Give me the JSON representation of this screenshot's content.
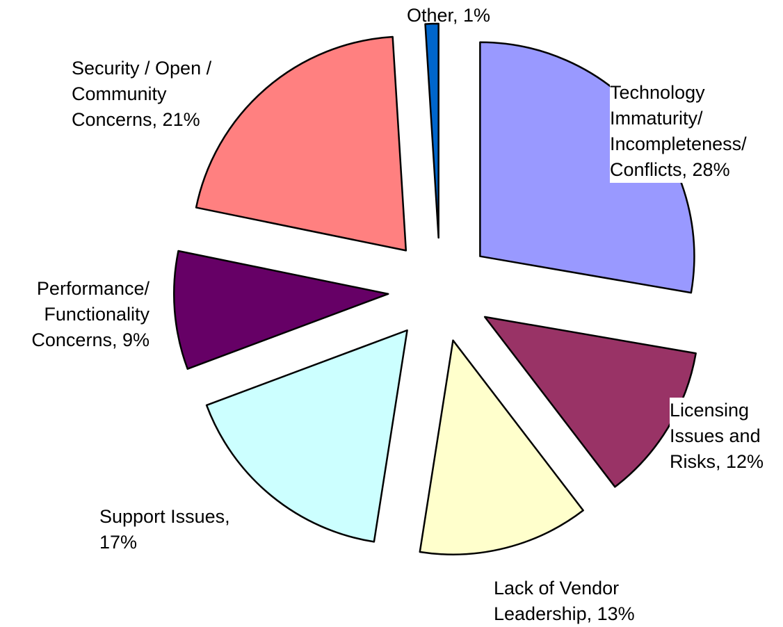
{
  "chart_data": {
    "type": "pie",
    "categories": [
      "Technology Immaturity/ Incompleteness/ Conflicts, 28%",
      "Licensing Issues and Risks, 12%",
      "Lack of Vendor Leadership, 13%",
      "Support Issues, 17%",
      "Performance/ Functionality Concerns, 9%",
      "Security / Open / Community Concerns, 21%",
      "Other, 1%"
    ],
    "values": [
      28,
      12,
      13,
      17,
      9,
      21,
      1
    ],
    "colors": [
      "#9999ff",
      "#993366",
      "#ffffcc",
      "#ccffff",
      "#660066",
      "#ff8080",
      "#0066cc"
    ]
  }
}
